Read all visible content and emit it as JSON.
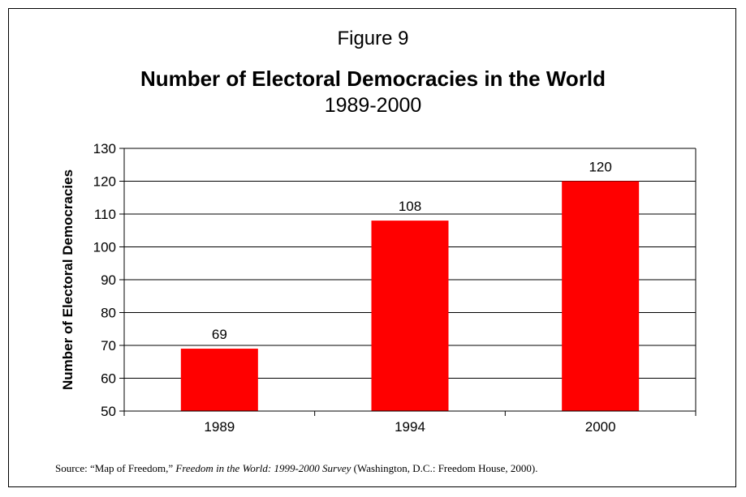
{
  "figure_label": "Figure 9",
  "chart_data": {
    "type": "bar",
    "title": "Number of Electoral Democracies in the World",
    "subtitle": "1989-2000",
    "ylabel": "Number of Electoral Democracies",
    "xlabel": "",
    "categories": [
      "1989",
      "1994",
      "2000"
    ],
    "values": [
      69,
      108,
      120
    ],
    "data_labels": [
      "69",
      "108",
      "120"
    ],
    "ylim": [
      50,
      130
    ],
    "yticks": [
      50,
      60,
      70,
      80,
      90,
      100,
      110,
      120,
      130
    ],
    "grid": true,
    "legend": "none",
    "bar_color": "#ff0000"
  },
  "source": {
    "prefix": "Source:  “Map of Freedom,” ",
    "italic": "Freedom in the World: 1999-2000 Survey",
    "suffix": " (Washington, D.C.: Freedom House, 2000)."
  }
}
